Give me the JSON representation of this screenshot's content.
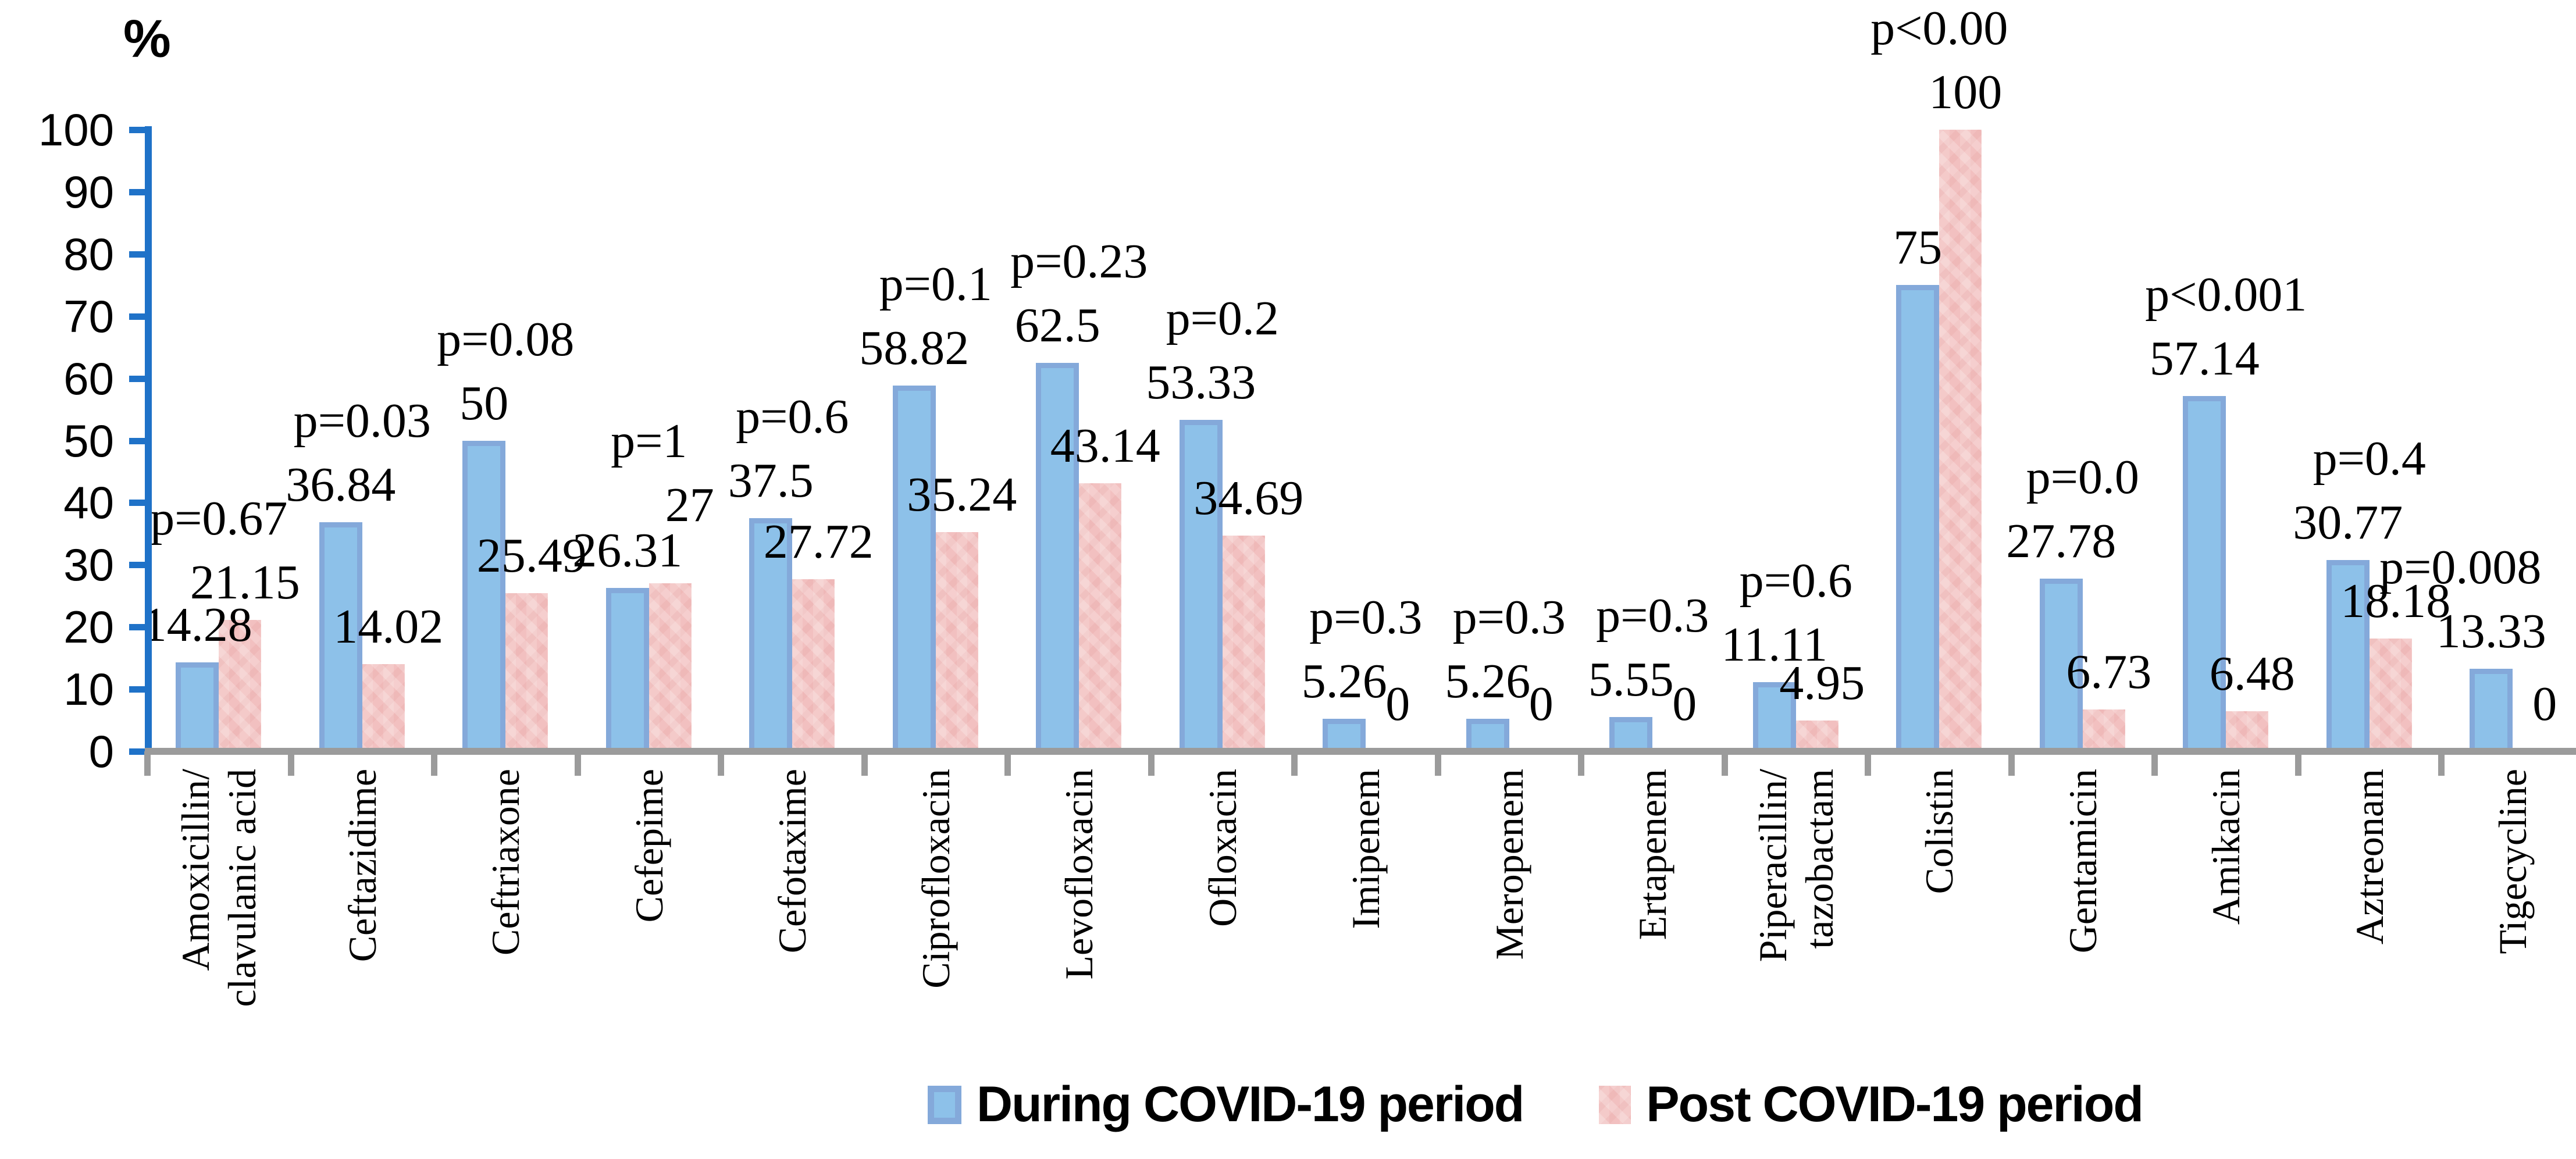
{
  "chart_data": {
    "type": "bar",
    "title": "",
    "ylabel": "%",
    "xlabel": "",
    "ylim": [
      0,
      100
    ],
    "yticks": [
      0,
      10,
      20,
      30,
      40,
      50,
      60,
      70,
      80,
      90,
      100
    ],
    "grid": false,
    "legend_position": "bottom",
    "categories": [
      "Amoxicillin/\nclavulanic acid",
      "Ceftazidime",
      "Ceftriaxone",
      "Cefepime",
      "Cefotaxime",
      "Ciprofloxacin",
      "Levofloxacin",
      "Ofloxacin",
      "Imipenem",
      "Meropenem",
      "Ertapenem",
      "Piperacillin/\ntazobactam",
      "Colistin",
      "Gentamicin",
      "Amikacin",
      "Aztreonam",
      "Tigecycline"
    ],
    "series": [
      {
        "name": "During COVID-19 period",
        "color": "#8DC1E9",
        "border_color": "#84A9DA",
        "values": [
          14.28,
          36.84,
          50,
          26.31,
          37.5,
          58.82,
          62.5,
          53.33,
          5.26,
          5.26,
          5.55,
          11.11,
          75,
          27.78,
          57.14,
          30.77,
          13.33
        ]
      },
      {
        "name": "Post COVID-19 period",
        "color": "#F3C3C2",
        "values": [
          21.15,
          14.02,
          25.49,
          27,
          27.72,
          35.24,
          43.14,
          34.69,
          0,
          0,
          0,
          4.95,
          100,
          6.73,
          6.48,
          18.18,
          0
        ]
      }
    ],
    "p_values": [
      "p=0.67",
      "p=0.03",
      "p=0.08",
      "p=1",
      "p=0.6",
      "p=0.1",
      "p=0.23",
      "p=0.2",
      "p=0.3",
      "p=0.3",
      "p=0.3",
      "p=0.6",
      "p<0.00",
      "p=0.0",
      "p<0.001",
      "p=0.4",
      "p=0.008"
    ],
    "axis_colors": {
      "y_axis": "#1F72C8",
      "x_axis": "#9B9B9B",
      "text": "#000000"
    }
  }
}
